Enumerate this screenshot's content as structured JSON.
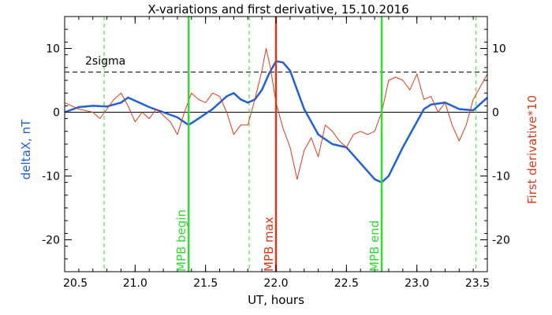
{
  "chart_data": {
    "type": "line",
    "title": "X-variations and first derivative, 15.10.2016",
    "xlabel": "UT, hours",
    "ylabel_left": "deltaX, nT",
    "ylabel_right": "First derivative*10",
    "xlim": [
      20.5,
      23.5
    ],
    "ylim": [
      -25,
      15
    ],
    "xticks": [
      "20.5",
      "21.0",
      "21.5",
      "22.0",
      "22.5",
      "23.0",
      "23.5"
    ],
    "yticks": [
      "-20",
      "-10",
      "0",
      "10"
    ],
    "threshold": {
      "label": "2sigma",
      "value": 6.3
    },
    "colors": {
      "deltaX": "#1f5fd8",
      "derivative": "#d93a1a",
      "mpb": "#2fdc2f",
      "mpb_max": "#d93a1a"
    },
    "markers": [
      {
        "label": "MPB begin",
        "x": 21.38,
        "color": "#2fdc2f"
      },
      {
        "label": "MPB max",
        "x": 22.0,
        "color": "#d93a1a"
      },
      {
        "label": "MPB end",
        "x": 22.75,
        "color": "#2fdc2f"
      }
    ],
    "dashed_markers": [
      20.78,
      21.81,
      23.42
    ],
    "series": [
      {
        "name": "deltaX",
        "x": [
          20.5,
          20.6,
          20.7,
          20.8,
          20.9,
          20.95,
          21.0,
          21.1,
          21.2,
          21.3,
          21.38,
          21.45,
          21.55,
          21.65,
          21.7,
          21.75,
          21.8,
          21.85,
          21.9,
          21.95,
          22.0,
          22.05,
          22.1,
          22.15,
          22.2,
          22.3,
          22.4,
          22.5,
          22.6,
          22.7,
          22.75,
          22.8,
          22.9,
          23.0,
          23.05,
          23.1,
          23.2,
          23.3,
          23.4,
          23.5
        ],
        "y": [
          0.0,
          0.8,
          1.0,
          0.9,
          1.5,
          2.3,
          1.8,
          0.8,
          0.0,
          -0.8,
          -2.0,
          -1.0,
          0.5,
          2.5,
          3.0,
          2.0,
          1.5,
          2.0,
          3.5,
          6.0,
          8.0,
          7.8,
          6.5,
          3.5,
          0.5,
          -3.5,
          -5.0,
          -5.5,
          -8.0,
          -10.5,
          -11.0,
          -10.0,
          -5.5,
          -1.5,
          0.5,
          1.2,
          1.5,
          0.5,
          0.3,
          2.3
        ]
      },
      {
        "name": "First derivative*10",
        "x": [
          20.5,
          20.55,
          20.6,
          20.7,
          20.75,
          20.8,
          20.85,
          20.9,
          20.95,
          21.0,
          21.05,
          21.1,
          21.15,
          21.2,
          21.25,
          21.3,
          21.35,
          21.4,
          21.45,
          21.5,
          21.55,
          21.6,
          21.65,
          21.7,
          21.75,
          21.8,
          21.85,
          21.9,
          21.93,
          21.96,
          22.0,
          22.05,
          22.1,
          22.15,
          22.2,
          22.25,
          22.3,
          22.35,
          22.4,
          22.45,
          22.5,
          22.55,
          22.6,
          22.65,
          22.7,
          22.75,
          22.8,
          22.85,
          22.9,
          22.95,
          23.0,
          23.05,
          23.1,
          23.15,
          23.2,
          23.25,
          23.3,
          23.35,
          23.4,
          23.45,
          23.5
        ],
        "y": [
          1.5,
          1.0,
          0.5,
          0.0,
          -1.0,
          0.5,
          2.0,
          3.0,
          1.0,
          -1.5,
          0.0,
          -1.0,
          0.5,
          -0.5,
          -1.5,
          -3.5,
          0.0,
          3.0,
          2.0,
          1.5,
          3.0,
          2.5,
          0.0,
          -3.5,
          -2.0,
          -2.0,
          2.0,
          6.5,
          10.0,
          7.0,
          1.5,
          -2.5,
          -5.5,
          -10.5,
          -6.0,
          -4.0,
          -7.0,
          -2.0,
          -3.0,
          -4.5,
          -5.5,
          -3.5,
          -3.0,
          -3.5,
          -3.0,
          0.0,
          5.0,
          5.5,
          5.0,
          3.5,
          6.0,
          2.0,
          2.5,
          0.0,
          1.5,
          -2.0,
          -4.5,
          -2.0,
          2.0,
          4.0,
          6.0
        ]
      }
    ]
  }
}
